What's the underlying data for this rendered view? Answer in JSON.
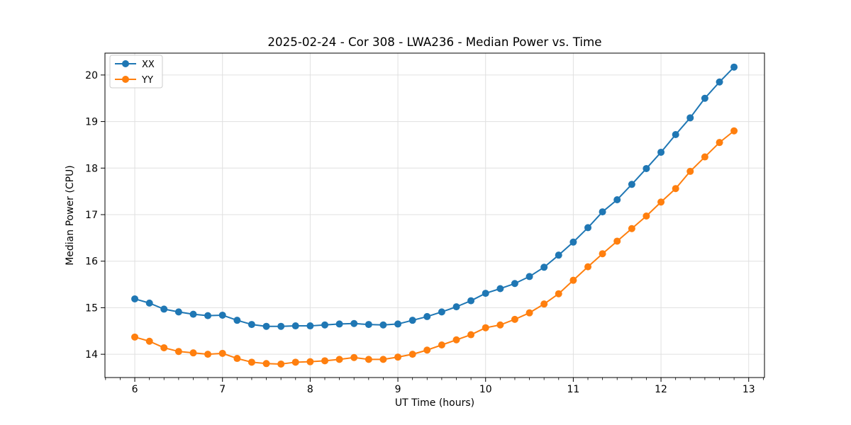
{
  "chart_data": {
    "type": "line",
    "title": "2025-02-24 - Cor 308 - LWA236 - Median Power vs. Time",
    "xlabel": "UT Time (hours)",
    "ylabel": "Median Power (CPU)",
    "xlim": [
      5.66,
      13.18
    ],
    "ylim": [
      13.5,
      20.47
    ],
    "x_ticks": [
      6,
      7,
      8,
      9,
      10,
      11,
      12,
      13
    ],
    "y_ticks": [
      14,
      15,
      16,
      17,
      18,
      19,
      20
    ],
    "x_minor_divisions": 6,
    "grid": true,
    "legend_position": "upper left",
    "marker": "circle",
    "x": [
      6.0,
      6.167,
      6.333,
      6.5,
      6.667,
      6.833,
      7.0,
      7.167,
      7.333,
      7.5,
      7.667,
      7.833,
      8.0,
      8.167,
      8.333,
      8.5,
      8.667,
      8.833,
      9.0,
      9.167,
      9.333,
      9.5,
      9.667,
      9.833,
      10.0,
      10.167,
      10.333,
      10.5,
      10.667,
      10.833,
      11.0,
      11.167,
      11.333,
      11.5,
      11.667,
      11.833,
      12.0,
      12.167,
      12.333,
      12.5,
      12.667,
      12.833
    ],
    "series": [
      {
        "name": "XX",
        "color": "#1f77b4",
        "values": [
          15.19,
          15.1,
          14.97,
          14.91,
          14.86,
          14.83,
          14.84,
          14.73,
          14.64,
          14.6,
          14.6,
          14.61,
          14.61,
          14.63,
          14.65,
          14.66,
          14.64,
          14.63,
          14.65,
          14.73,
          14.81,
          14.91,
          15.02,
          15.15,
          15.31,
          15.41,
          15.52,
          15.67,
          15.87,
          16.13,
          16.41,
          16.72,
          17.06,
          17.32,
          17.65,
          17.99,
          18.34,
          18.72,
          19.08,
          19.5,
          19.85,
          20.17
        ]
      },
      {
        "name": "YY",
        "color": "#ff7f0e",
        "values": [
          14.37,
          14.28,
          14.14,
          14.06,
          14.03,
          14.0,
          14.02,
          13.91,
          13.83,
          13.8,
          13.79,
          13.83,
          13.84,
          13.86,
          13.89,
          13.93,
          13.89,
          13.89,
          13.94,
          14.0,
          14.09,
          14.2,
          14.31,
          14.42,
          14.57,
          14.63,
          14.75,
          14.89,
          15.08,
          15.3,
          15.59,
          15.88,
          16.16,
          16.43,
          16.7,
          16.97,
          17.27,
          17.56,
          17.93,
          18.24,
          18.55,
          18.8
        ]
      }
    ],
    "colors": {
      "background": "#ffffff",
      "grid": "#e0e0e0",
      "axis": "#000000"
    }
  }
}
